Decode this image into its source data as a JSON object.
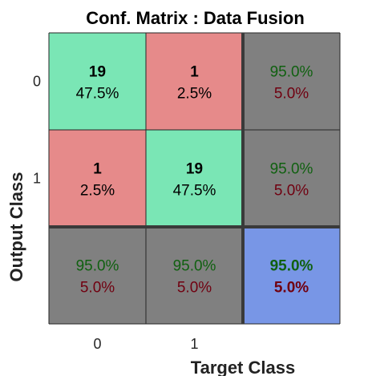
{
  "chart_data": {
    "type": "heatmap",
    "title": "Conf. Matrix : Data Fusion",
    "xlabel": "Target Class",
    "ylabel": "Output Class",
    "x_ticks": [
      "0",
      "1"
    ],
    "y_ticks": [
      "0",
      "1"
    ],
    "matrix": [
      [
        {
          "count": "19",
          "percent": "47.5%"
        },
        {
          "count": "1",
          "percent": "2.5%"
        }
      ],
      [
        {
          "count": "1",
          "percent": "2.5%"
        },
        {
          "count": "19",
          "percent": "47.5%"
        }
      ]
    ],
    "row_summary": [
      {
        "correct": "95.0%",
        "error": "5.0%"
      },
      {
        "correct": "95.0%",
        "error": "5.0%"
      }
    ],
    "column_summary": [
      {
        "correct": "95.0%",
        "error": "5.0%"
      },
      {
        "correct": "95.0%",
        "error": "5.0%"
      }
    ],
    "overall": {
      "correct": "95.0%",
      "error": "5.0%"
    },
    "colors": {
      "correct_cell": "#7ae6b5",
      "incorrect_cell": "#e68a8a",
      "summary_cell": "#808080",
      "overall_cell": "#7896e6",
      "correct_text": "#106010",
      "error_text": "#700010",
      "count_text": "#000000"
    }
  }
}
